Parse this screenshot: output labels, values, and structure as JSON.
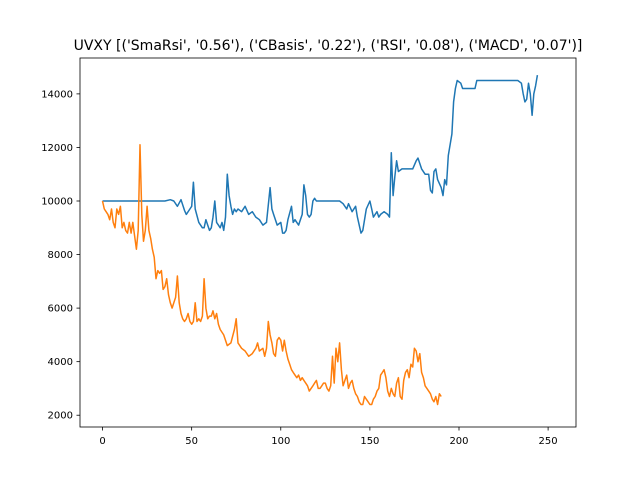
{
  "chart_data": {
    "type": "line",
    "title": "UVXY [('SmaRsi', '0.56'), ('CBasis', '0.22'), ('RSI', '0.08'), ('MACD', '0.07')]",
    "xlabel": "",
    "ylabel": "",
    "xlim": [
      -12.65,
      265.65
    ],
    "ylim": [
      1560,
      15340
    ],
    "xticks": [
      0,
      50,
      100,
      150,
      200,
      250
    ],
    "yticks": [
      2000,
      4000,
      6000,
      8000,
      10000,
      12000,
      14000
    ],
    "grid": false,
    "legend": "none",
    "series": [
      {
        "color": "#1f77b4",
        "points": [
          [
            0,
            10000
          ],
          [
            5,
            10000
          ],
          [
            10,
            10000
          ],
          [
            15,
            10000
          ],
          [
            20,
            10000
          ],
          [
            25,
            10000
          ],
          [
            30,
            10000
          ],
          [
            35,
            10000
          ],
          [
            38,
            10050
          ],
          [
            40,
            10000
          ],
          [
            42,
            9800
          ],
          [
            44,
            10050
          ],
          [
            46,
            9650
          ],
          [
            47,
            9500
          ],
          [
            49,
            9700
          ],
          [
            50,
            9800
          ],
          [
            51,
            10700
          ],
          [
            52,
            9700
          ],
          [
            54,
            9200
          ],
          [
            56,
            9000
          ],
          [
            57,
            9000
          ],
          [
            58,
            9300
          ],
          [
            59,
            9100
          ],
          [
            60,
            8900
          ],
          [
            61,
            9000
          ],
          [
            62,
            9400
          ],
          [
            63,
            10000
          ],
          [
            64,
            9200
          ],
          [
            65,
            9100
          ],
          [
            66,
            9000
          ],
          [
            67,
            9200
          ],
          [
            68,
            8900
          ],
          [
            69,
            9400
          ],
          [
            70,
            11000
          ],
          [
            71,
            10200
          ],
          [
            72,
            9800
          ],
          [
            73,
            9500
          ],
          [
            74,
            9700
          ],
          [
            75,
            9600
          ],
          [
            76,
            9700
          ],
          [
            78,
            9600
          ],
          [
            80,
            9800
          ],
          [
            82,
            9500
          ],
          [
            84,
            9600
          ],
          [
            86,
            9400
          ],
          [
            88,
            9300
          ],
          [
            90,
            9100
          ],
          [
            92,
            9200
          ],
          [
            94,
            10500
          ],
          [
            95,
            9700
          ],
          [
            96,
            9500
          ],
          [
            98,
            9100
          ],
          [
            100,
            9200
          ],
          [
            101,
            8800
          ],
          [
            102,
            8800
          ],
          [
            103,
            8900
          ],
          [
            104,
            9300
          ],
          [
            106,
            9800
          ],
          [
            107,
            9200
          ],
          [
            108,
            9300
          ],
          [
            109,
            9200
          ],
          [
            110,
            9100
          ],
          [
            112,
            9500
          ],
          [
            113,
            10600
          ],
          [
            114,
            10200
          ],
          [
            115,
            9500
          ],
          [
            116,
            9400
          ],
          [
            117,
            9500
          ],
          [
            118,
            10000
          ],
          [
            119,
            10100
          ],
          [
            120,
            10000
          ],
          [
            125,
            10000
          ],
          [
            130,
            10000
          ],
          [
            133,
            10000
          ],
          [
            135,
            9900
          ],
          [
            137,
            9700
          ],
          [
            138,
            9900
          ],
          [
            140,
            9600
          ],
          [
            142,
            9800
          ],
          [
            143,
            9400
          ],
          [
            145,
            8800
          ],
          [
            146,
            8900
          ],
          [
            148,
            9700
          ],
          [
            150,
            10000
          ],
          [
            151,
            9700
          ],
          [
            152,
            9400
          ],
          [
            154,
            9600
          ],
          [
            155,
            9400
          ],
          [
            156,
            9500
          ],
          [
            158,
            9600
          ],
          [
            160,
            9500
          ],
          [
            161,
            9400
          ],
          [
            162,
            11800
          ],
          [
            163,
            10200
          ],
          [
            164,
            10900
          ],
          [
            165,
            11500
          ],
          [
            166,
            11100
          ],
          [
            168,
            11200
          ],
          [
            170,
            11200
          ],
          [
            172,
            11200
          ],
          [
            174,
            11200
          ],
          [
            176,
            11500
          ],
          [
            177,
            11600
          ],
          [
            179,
            11200
          ],
          [
            181,
            11000
          ],
          [
            183,
            11000
          ],
          [
            184,
            10400
          ],
          [
            185,
            10300
          ],
          [
            186,
            11100
          ],
          [
            187,
            11200
          ],
          [
            188,
            10800
          ],
          [
            190,
            10500
          ],
          [
            191,
            10200
          ],
          [
            192,
            10800
          ],
          [
            193,
            10600
          ],
          [
            194,
            11700
          ],
          [
            196,
            12500
          ],
          [
            197,
            13700
          ],
          [
            198,
            14200
          ],
          [
            199,
            14500
          ],
          [
            201,
            14400
          ],
          [
            202,
            14200
          ],
          [
            205,
            14200
          ],
          [
            208,
            14200
          ],
          [
            209,
            14200
          ],
          [
            210,
            14500
          ],
          [
            215,
            14500
          ],
          [
            220,
            14500
          ],
          [
            225,
            14500
          ],
          [
            230,
            14500
          ],
          [
            233,
            14500
          ],
          [
            235,
            14400
          ],
          [
            236,
            14000
          ],
          [
            237,
            13700
          ],
          [
            238,
            13800
          ],
          [
            239,
            14400
          ],
          [
            240,
            14000
          ],
          [
            241,
            13200
          ],
          [
            242,
            14000
          ],
          [
            243,
            14300
          ],
          [
            244,
            14700
          ]
        ]
      },
      {
        "color": "#ff7f0e",
        "points": [
          [
            0,
            10000
          ],
          [
            1,
            9700
          ],
          [
            2,
            9600
          ],
          [
            3,
            9500
          ],
          [
            4,
            9300
          ],
          [
            5,
            9700
          ],
          [
            6,
            9200
          ],
          [
            7,
            9000
          ],
          [
            8,
            9700
          ],
          [
            9,
            9500
          ],
          [
            10,
            9800
          ],
          [
            11,
            9000
          ],
          [
            12,
            9200
          ],
          [
            13,
            8900
          ],
          [
            14,
            8800
          ],
          [
            15,
            9200
          ],
          [
            16,
            8800
          ],
          [
            17,
            9200
          ],
          [
            18,
            8700
          ],
          [
            19,
            8200
          ],
          [
            20,
            8900
          ],
          [
            21,
            12100
          ],
          [
            22,
            9500
          ],
          [
            23,
            8500
          ],
          [
            24,
            8900
          ],
          [
            25,
            9800
          ],
          [
            26,
            8900
          ],
          [
            27,
            8600
          ],
          [
            28,
            8200
          ],
          [
            29,
            7900
          ],
          [
            30,
            7100
          ],
          [
            31,
            7400
          ],
          [
            32,
            7300
          ],
          [
            33,
            7400
          ],
          [
            34,
            6700
          ],
          [
            35,
            6800
          ],
          [
            36,
            7100
          ],
          [
            37,
            6500
          ],
          [
            38,
            6200
          ],
          [
            39,
            6000
          ],
          [
            40,
            6200
          ],
          [
            41,
            6400
          ],
          [
            42,
            7200
          ],
          [
            43,
            6200
          ],
          [
            44,
            5800
          ],
          [
            45,
            5600
          ],
          [
            46,
            5500
          ],
          [
            47,
            5600
          ],
          [
            48,
            5800
          ],
          [
            49,
            5500
          ],
          [
            50,
            5400
          ],
          [
            51,
            5500
          ],
          [
            52,
            6200
          ],
          [
            53,
            5500
          ],
          [
            54,
            5600
          ],
          [
            55,
            5500
          ],
          [
            56,
            5700
          ],
          [
            57,
            7100
          ],
          [
            58,
            6000
          ],
          [
            59,
            5600
          ],
          [
            60,
            5700
          ],
          [
            61,
            5700
          ],
          [
            62,
            5900
          ],
          [
            63,
            5600
          ],
          [
            64,
            5800
          ],
          [
            65,
            5400
          ],
          [
            66,
            5200
          ],
          [
            68,
            5000
          ],
          [
            70,
            4600
          ],
          [
            72,
            4700
          ],
          [
            74,
            5200
          ],
          [
            75,
            5600
          ],
          [
            76,
            4700
          ],
          [
            78,
            4500
          ],
          [
            80,
            4400
          ],
          [
            82,
            4200
          ],
          [
            84,
            4300
          ],
          [
            86,
            4500
          ],
          [
            87,
            4700
          ],
          [
            88,
            4400
          ],
          [
            90,
            4500
          ],
          [
            91,
            4200
          ],
          [
            92,
            4500
          ],
          [
            93,
            5500
          ],
          [
            94,
            5000
          ],
          [
            95,
            4700
          ],
          [
            96,
            4300
          ],
          [
            97,
            4200
          ],
          [
            98,
            4800
          ],
          [
            99,
            4900
          ],
          [
            100,
            4800
          ],
          [
            101,
            4400
          ],
          [
            102,
            4800
          ],
          [
            103,
            4400
          ],
          [
            104,
            4100
          ],
          [
            105,
            3900
          ],
          [
            106,
            3700
          ],
          [
            107,
            3600
          ],
          [
            108,
            3500
          ],
          [
            109,
            3400
          ],
          [
            110,
            3500
          ],
          [
            111,
            3300
          ],
          [
            112,
            3400
          ],
          [
            113,
            3300
          ],
          [
            114,
            3200
          ],
          [
            115,
            3100
          ],
          [
            116,
            2900
          ],
          [
            117,
            3000
          ],
          [
            118,
            3100
          ],
          [
            119,
            3200
          ],
          [
            120,
            3300
          ],
          [
            121,
            3000
          ],
          [
            122,
            3000
          ],
          [
            123,
            3100
          ],
          [
            124,
            3200
          ],
          [
            125,
            3200
          ],
          [
            126,
            3000
          ],
          [
            127,
            2900
          ],
          [
            128,
            3100
          ],
          [
            129,
            4200
          ],
          [
            130,
            3200
          ],
          [
            131,
            4500
          ],
          [
            132,
            4000
          ],
          [
            133,
            4700
          ],
          [
            134,
            3700
          ],
          [
            135,
            3100
          ],
          [
            136,
            3300
          ],
          [
            137,
            3500
          ],
          [
            138,
            3000
          ],
          [
            139,
            3200
          ],
          [
            140,
            3300
          ],
          [
            141,
            3000
          ],
          [
            142,
            2800
          ],
          [
            143,
            2700
          ],
          [
            144,
            2500
          ],
          [
            145,
            2400
          ],
          [
            146,
            2400
          ],
          [
            147,
            2700
          ],
          [
            148,
            2600
          ],
          [
            149,
            2500
          ],
          [
            150,
            2400
          ],
          [
            151,
            2400
          ],
          [
            152,
            2600
          ],
          [
            153,
            2700
          ],
          [
            154,
            2900
          ],
          [
            155,
            3000
          ],
          [
            156,
            3500
          ],
          [
            157,
            3600
          ],
          [
            158,
            3700
          ],
          [
            159,
            3400
          ],
          [
            160,
            2900
          ],
          [
            161,
            2700
          ],
          [
            162,
            3000
          ],
          [
            163,
            2800
          ],
          [
            164,
            2700
          ],
          [
            165,
            3200
          ],
          [
            166,
            3400
          ],
          [
            167,
            2700
          ],
          [
            168,
            2600
          ],
          [
            169,
            3300
          ],
          [
            170,
            3600
          ],
          [
            171,
            3700
          ],
          [
            172,
            3400
          ],
          [
            173,
            3900
          ],
          [
            174,
            3800
          ],
          [
            175,
            4500
          ],
          [
            176,
            4400
          ],
          [
            177,
            4000
          ],
          [
            178,
            4300
          ],
          [
            179,
            3600
          ],
          [
            180,
            3400
          ],
          [
            181,
            3100
          ],
          [
            182,
            3000
          ],
          [
            183,
            2900
          ],
          [
            184,
            2800
          ],
          [
            185,
            2600
          ],
          [
            186,
            2500
          ],
          [
            187,
            2700
          ],
          [
            188,
            2400
          ],
          [
            189,
            2800
          ],
          [
            190,
            2700
          ]
        ]
      }
    ]
  }
}
